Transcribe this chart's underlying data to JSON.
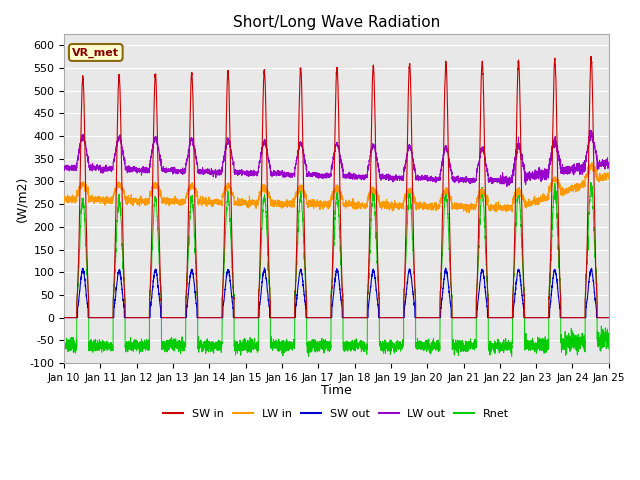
{
  "title": "Short/Long Wave Radiation",
  "xlabel": "Time",
  "ylabel": "(W/m2)",
  "ylim": [
    -100,
    625
  ],
  "yticks": [
    -100,
    -50,
    0,
    50,
    100,
    150,
    200,
    250,
    300,
    350,
    400,
    450,
    500,
    550,
    600
  ],
  "xlim": [
    0,
    15
  ],
  "xtick_labels": [
    "Jan 10",
    "Jan 11",
    "Jan 12",
    "Jan 13",
    "Jan 14",
    "Jan 15",
    "Jan 16",
    "Jan 17",
    "Jan 18",
    "Jan 19",
    "Jan 20",
    "Jan 21",
    "Jan 22",
    "Jan 23",
    "Jan 24",
    "Jan 25"
  ],
  "legend_labels": [
    "SW in",
    "LW in",
    "SW out",
    "LW out",
    "Rnet"
  ],
  "colors": {
    "SW_in": "#cc0000",
    "LW_in": "#ff9900",
    "SW_out": "#0000cc",
    "LW_out": "#9900cc",
    "Rnet": "#00cc00"
  },
  "annotation": "VR_met",
  "plot_bg_color": "#e8e8e8",
  "grid_color": "#ffffff",
  "fig_bg_color": "#ffffff"
}
